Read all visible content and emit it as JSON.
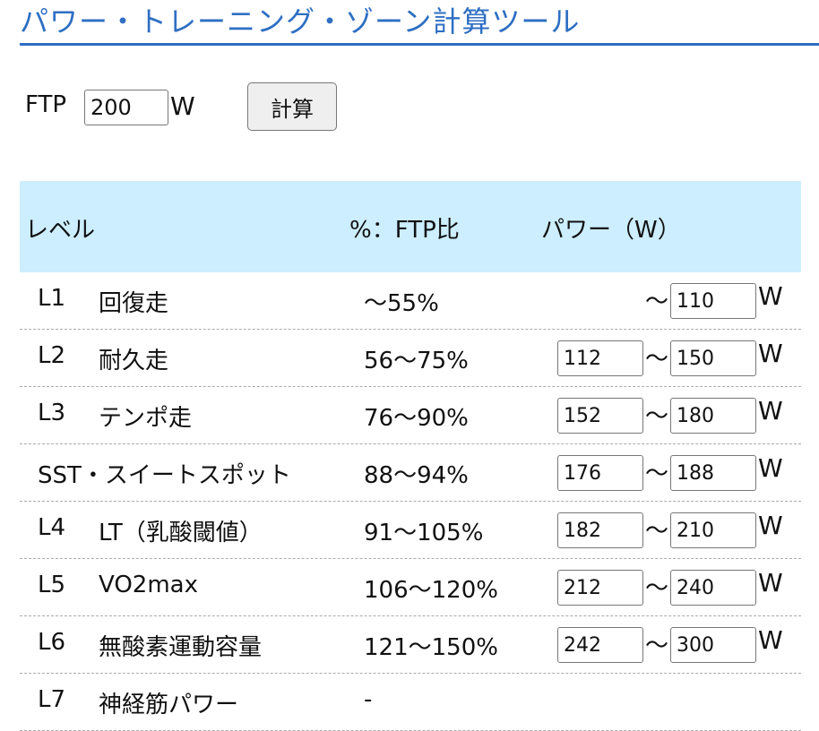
{
  "title": "パワー・トレーニング・ゾーン計算ツール",
  "ftp": {
    "label": "FTP",
    "value": "200",
    "unit": "W",
    "button_label": "計算"
  },
  "table": {
    "headers": {
      "level": "レベル",
      "percent": "%：FTP比",
      "power": "パワー（W）"
    },
    "tilde": "〜",
    "unit": "W",
    "rows": [
      {
        "code": "L1",
        "name": "回復走",
        "percent": "〜55%",
        "min": null,
        "max": "110"
      },
      {
        "code": "L2",
        "name": "耐久走",
        "percent": "56〜75%",
        "min": "112",
        "max": "150"
      },
      {
        "code": "L3",
        "name": "テンポ走",
        "percent": "76〜90%",
        "min": "152",
        "max": "180"
      },
      {
        "code": "",
        "name": "SST・スイートスポット",
        "percent": "88〜94%",
        "min": "176",
        "max": "188"
      },
      {
        "code": "L4",
        "name": "LT（乳酸閾値）",
        "percent": "91〜105%",
        "min": "182",
        "max": "210"
      },
      {
        "code": "L5",
        "name": "VO2max",
        "percent": "106〜120%",
        "min": "212",
        "max": "240"
      },
      {
        "code": "L6",
        "name": "無酸素運動容量",
        "percent": "121〜150%",
        "min": "242",
        "max": "300"
      },
      {
        "code": "L7",
        "name": "神経筋パワー",
        "percent": "-",
        "min": null,
        "max": null
      }
    ]
  }
}
